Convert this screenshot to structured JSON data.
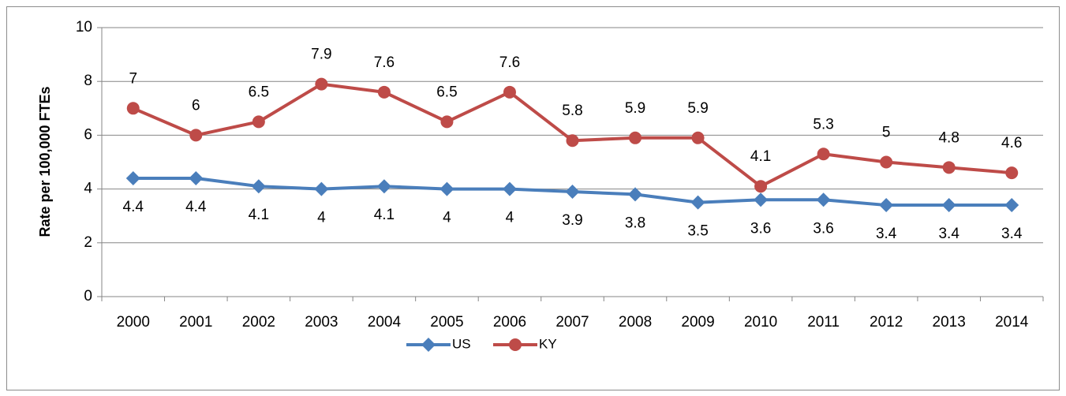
{
  "chart_data": {
    "type": "line",
    "y_label": "Rate per 100,000 FTEs",
    "categories": [
      "2000",
      "2001",
      "2002",
      "2003",
      "2004",
      "2005",
      "2006",
      "2007",
      "2008",
      "2009",
      "2010",
      "2011",
      "2012",
      "2013",
      "2014"
    ],
    "series": [
      {
        "name": "US",
        "color": "#4a7ebb",
        "marker": "diamond",
        "values": [
          4.4,
          4.4,
          4.1,
          4,
          4.1,
          4,
          4,
          3.9,
          3.8,
          3.5,
          3.6,
          3.6,
          3.4,
          3.4,
          3.4
        ]
      },
      {
        "name": "KY",
        "color": "#be4b48",
        "marker": "circle",
        "values": [
          7,
          6,
          6.5,
          7.9,
          7.6,
          6.5,
          7.6,
          5.8,
          5.9,
          5.9,
          4.1,
          5.3,
          5,
          4.8,
          4.6
        ]
      }
    ],
    "ylim": [
      0,
      10
    ],
    "yticks": [
      0,
      2,
      4,
      6,
      8,
      10
    ],
    "grid": true,
    "legend": "bottom"
  }
}
